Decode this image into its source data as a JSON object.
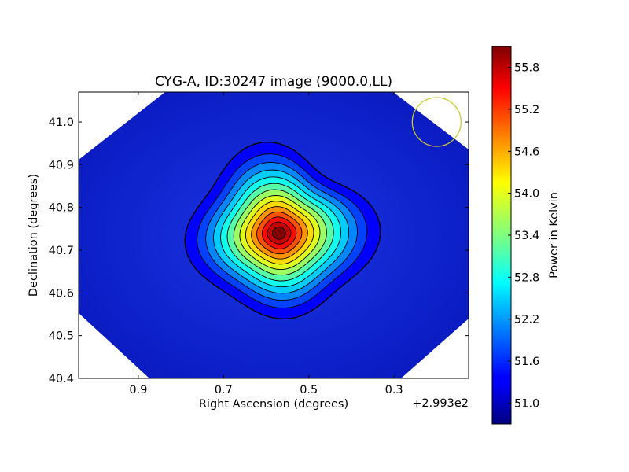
{
  "chart_data": {
    "type": "heatmap",
    "title": "CYG-A, ID:30247 image (9000.0,LL)",
    "xlabel": "Right Ascension (degrees)",
    "ylabel": "Declination (degrees)",
    "x_offset_label": "+2.993e2",
    "x_offset": 299.3,
    "xlim": [
      1.04,
      0.125
    ],
    "ylim": [
      40.4,
      41.07
    ],
    "x_ticks": [
      0.9,
      0.7,
      0.5,
      0.3
    ],
    "x_tick_labels": [
      "0.9",
      "0.7",
      "0.5",
      "0.3"
    ],
    "y_ticks": [
      40.4,
      40.5,
      40.6,
      40.7,
      40.8,
      40.9,
      41.0
    ],
    "y_tick_labels": [
      "40.4",
      "40.5",
      "40.6",
      "40.7",
      "40.8",
      "40.9",
      "41.0"
    ],
    "colorbar": {
      "label": "Power in Kelvin",
      "range": [
        50.7,
        56.1
      ],
      "ticks": [
        51.0,
        51.6,
        52.2,
        52.8,
        53.4,
        54.0,
        54.6,
        55.2,
        55.8
      ],
      "tick_labels": [
        "51.0",
        "51.6",
        "52.2",
        "52.8",
        "53.4",
        "54.0",
        "54.6",
        "55.2",
        "55.8"
      ],
      "colormap": "jet"
    },
    "source": {
      "x": 0.57,
      "y": 40.74,
      "peak": 56.1,
      "background": 50.95
    },
    "contour_count": 14,
    "beam_circle": {
      "x": 0.2,
      "y": 41.0,
      "color": "#c8c832"
    },
    "grid": false,
    "legend": "none"
  }
}
